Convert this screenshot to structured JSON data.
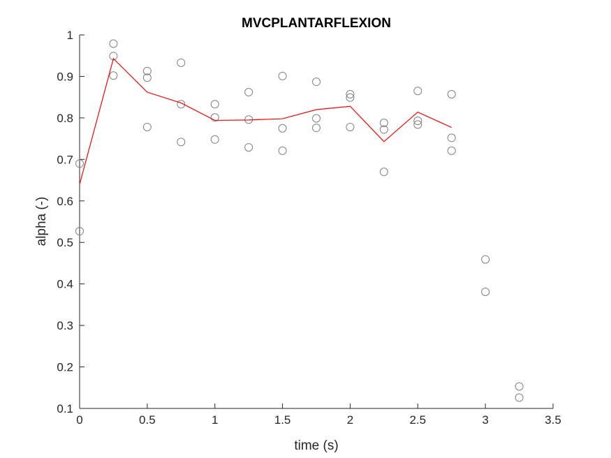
{
  "chart_data": {
    "type": "scatter",
    "title": "MVCPLANTARFLEXION",
    "xlabel": "time (s)",
    "ylabel": "alpha (-)",
    "xlim": [
      0,
      3.5
    ],
    "ylim": [
      0.1,
      1.0
    ],
    "xticks": [
      0,
      0.5,
      1,
      1.5,
      2,
      2.5,
      3,
      3.5
    ],
    "xtick_labels": [
      "0",
      "0.5",
      "1",
      "1.5",
      "2",
      "2.5",
      "3",
      "3.5"
    ],
    "yticks": [
      0.1,
      0.2,
      0.3,
      0.4,
      0.5,
      0.6,
      0.7,
      0.8,
      0.9,
      1.0
    ],
    "ytick_labels": [
      "0.1",
      "0.2",
      "0.3",
      "0.4",
      "0.5",
      "0.6",
      "0.7",
      "0.8",
      "0.9",
      "1"
    ],
    "grid": false,
    "series": [
      {
        "type": "scatter",
        "color": "#808080",
        "marker": "open-circle",
        "points": [
          [
            0,
            0.69
          ],
          [
            0,
            0.527
          ],
          [
            0.25,
            0.979
          ],
          [
            0.25,
            0.949
          ],
          [
            0.25,
            0.902
          ],
          [
            0.5,
            0.913
          ],
          [
            0.5,
            0.897
          ],
          [
            0.5,
            0.778
          ],
          [
            0.75,
            0.933
          ],
          [
            0.75,
            0.833
          ],
          [
            0.75,
            0.742
          ],
          [
            1.0,
            0.833
          ],
          [
            1.0,
            0.801
          ],
          [
            1.0,
            0.748
          ],
          [
            1.25,
            0.862
          ],
          [
            1.25,
            0.796
          ],
          [
            1.25,
            0.729
          ],
          [
            1.5,
            0.901
          ],
          [
            1.5,
            0.775
          ],
          [
            1.5,
            0.721
          ],
          [
            1.75,
            0.887
          ],
          [
            1.75,
            0.799
          ],
          [
            1.75,
            0.776
          ],
          [
            2.0,
            0.857
          ],
          [
            2.0,
            0.849
          ],
          [
            2.0,
            0.778
          ],
          [
            2.25,
            0.788
          ],
          [
            2.25,
            0.772
          ],
          [
            2.25,
            0.67
          ],
          [
            2.5,
            0.865
          ],
          [
            2.5,
            0.793
          ],
          [
            2.5,
            0.784
          ],
          [
            2.75,
            0.857
          ],
          [
            2.75,
            0.752
          ],
          [
            2.75,
            0.721
          ],
          [
            3.0,
            0.459
          ],
          [
            3.0,
            0.381
          ],
          [
            3.25,
            0.153
          ],
          [
            3.25,
            0.126
          ]
        ]
      },
      {
        "type": "line",
        "color": "#ff0000",
        "x": [
          0,
          0.25,
          0.5,
          0.75,
          1.0,
          1.25,
          1.5,
          1.75,
          2.0,
          2.25,
          2.5,
          2.75
        ],
        "y": [
          0.64,
          0.943,
          0.862,
          0.836,
          0.794,
          0.795,
          0.798,
          0.82,
          0.828,
          0.743,
          0.814,
          0.777
        ]
      }
    ]
  }
}
